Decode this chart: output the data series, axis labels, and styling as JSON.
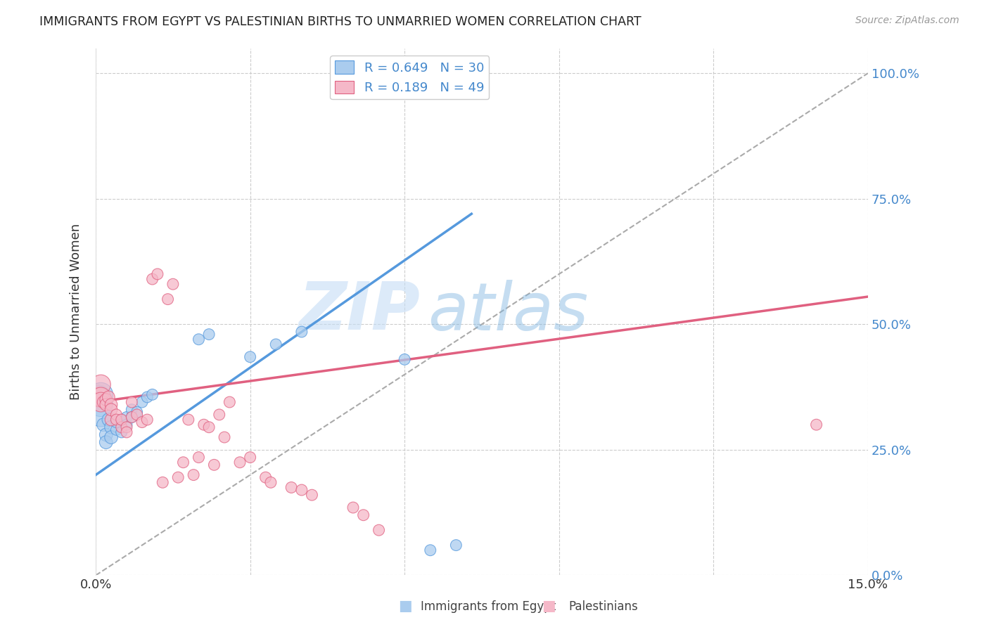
{
  "title": "IMMIGRANTS FROM EGYPT VS PALESTINIAN BIRTHS TO UNMARRIED WOMEN CORRELATION CHART",
  "source": "Source: ZipAtlas.com",
  "ylabel": "Births to Unmarried Women",
  "legend_blue": "R = 0.649   N = 30",
  "legend_pink": "R = 0.189   N = 49",
  "legend_label_blue": "Immigrants from Egypt",
  "legend_label_pink": "Palestinians",
  "blue_color": "#aaccee",
  "pink_color": "#f5b8c8",
  "blue_line_color": "#5599dd",
  "pink_line_color": "#e06080",
  "blue_text_color": "#4488cc",
  "watermark_zip": "ZIP",
  "watermark_atlas": "atlas",
  "blue_points_x": [
    0.0005,
    0.001,
    0.001,
    0.001,
    0.0015,
    0.002,
    0.002,
    0.0025,
    0.003,
    0.003,
    0.004,
    0.004,
    0.005,
    0.005,
    0.006,
    0.006,
    0.007,
    0.007,
    0.008,
    0.009,
    0.01,
    0.011,
    0.02,
    0.022,
    0.03,
    0.035,
    0.04,
    0.06,
    0.065,
    0.07
  ],
  "blue_points_y": [
    0.355,
    0.36,
    0.34,
    0.32,
    0.3,
    0.28,
    0.265,
    0.31,
    0.295,
    0.275,
    0.29,
    0.305,
    0.285,
    0.31,
    0.315,
    0.3,
    0.33,
    0.315,
    0.325,
    0.345,
    0.355,
    0.36,
    0.47,
    0.48,
    0.435,
    0.46,
    0.485,
    0.43,
    0.05,
    0.06
  ],
  "pink_points_x": [
    0.0005,
    0.001,
    0.001,
    0.001,
    0.0015,
    0.002,
    0.002,
    0.0025,
    0.003,
    0.003,
    0.003,
    0.004,
    0.004,
    0.005,
    0.005,
    0.006,
    0.006,
    0.007,
    0.007,
    0.008,
    0.009,
    0.01,
    0.011,
    0.012,
    0.013,
    0.014,
    0.015,
    0.016,
    0.017,
    0.018,
    0.019,
    0.02,
    0.021,
    0.022,
    0.023,
    0.024,
    0.025,
    0.026,
    0.028,
    0.03,
    0.033,
    0.034,
    0.038,
    0.04,
    0.042,
    0.05,
    0.052,
    0.055,
    0.14
  ],
  "pink_points_y": [
    0.355,
    0.38,
    0.355,
    0.345,
    0.345,
    0.35,
    0.34,
    0.355,
    0.34,
    0.31,
    0.33,
    0.32,
    0.31,
    0.295,
    0.31,
    0.295,
    0.285,
    0.345,
    0.315,
    0.32,
    0.305,
    0.31,
    0.59,
    0.6,
    0.185,
    0.55,
    0.58,
    0.195,
    0.225,
    0.31,
    0.2,
    0.235,
    0.3,
    0.295,
    0.22,
    0.32,
    0.275,
    0.345,
    0.225,
    0.235,
    0.195,
    0.185,
    0.175,
    0.17,
    0.16,
    0.135,
    0.12,
    0.09,
    0.3
  ],
  "blue_line_x": [
    0.0,
    0.073
  ],
  "blue_line_y": [
    0.2,
    0.72
  ],
  "pink_line_x": [
    0.0,
    0.15
  ],
  "pink_line_y": [
    0.345,
    0.555
  ],
  "dashed_line_x": [
    0.0,
    0.15
  ],
  "dashed_line_y": [
    0.0,
    1.0
  ],
  "xlim": [
    0.0,
    0.15
  ],
  "ylim": [
    0.0,
    1.05
  ],
  "ytick_vals": [
    0.0,
    0.25,
    0.5,
    0.75,
    1.0
  ],
  "ytick_labels": [
    "0.0%",
    "25.0%",
    "50.0%",
    "75.0%",
    "100.0%"
  ],
  "xtick_vals_minor": [
    0.03,
    0.06,
    0.09,
    0.12
  ],
  "xtick_labels_show": [
    "0.0%",
    "15.0%"
  ]
}
